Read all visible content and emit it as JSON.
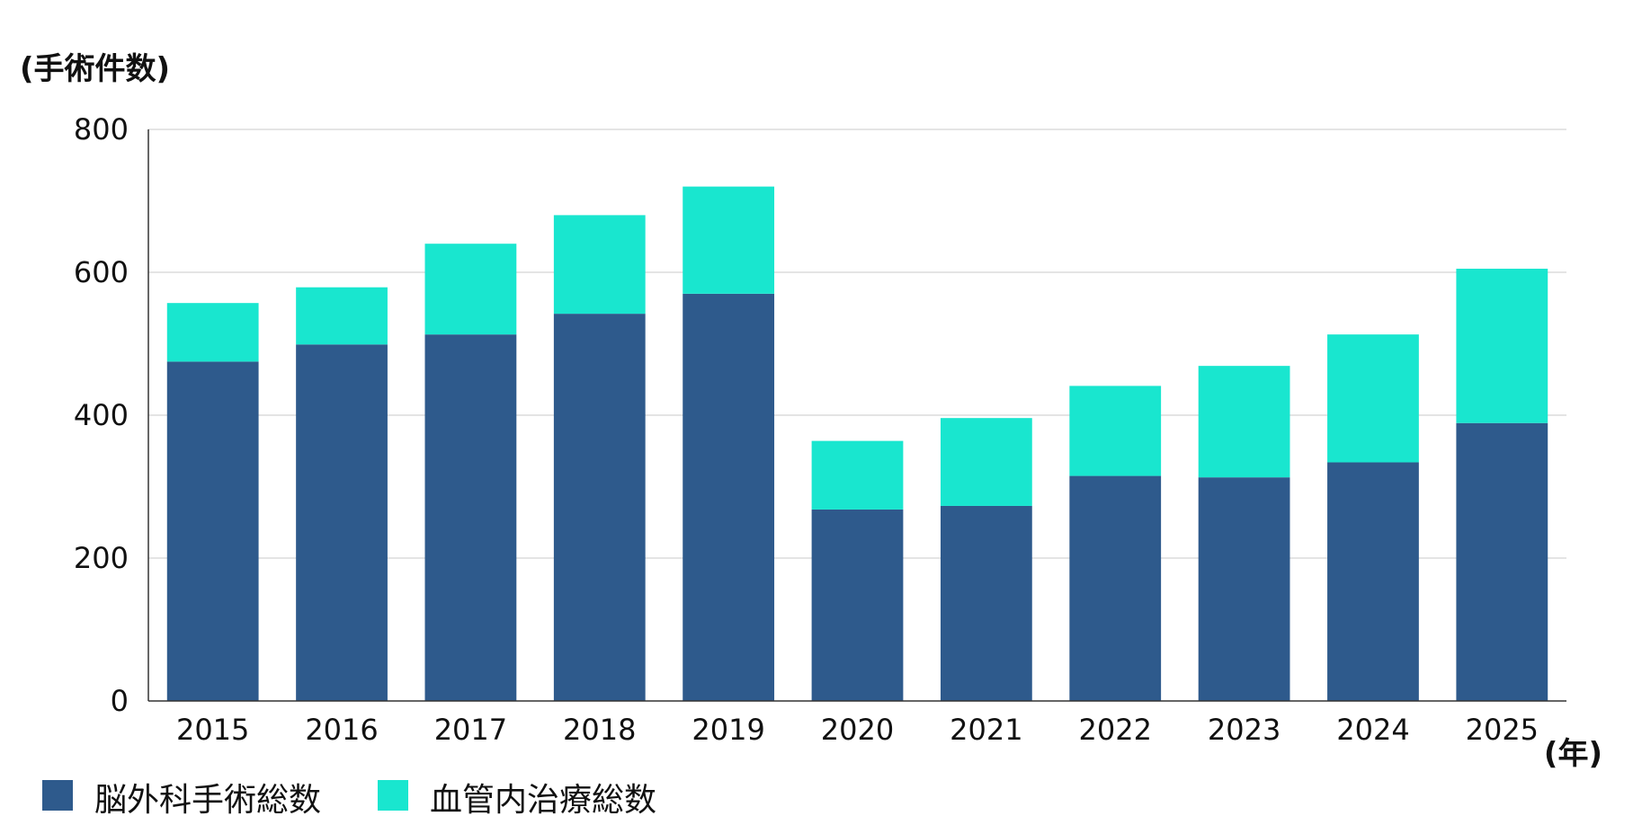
{
  "chart_data": {
    "type": "bar",
    "stacked": true,
    "ylabel": "(手術件数)",
    "xlabel": "(年)",
    "ylim": [
      0,
      800
    ],
    "yticks": [
      0,
      200,
      400,
      600,
      800
    ],
    "grid": true,
    "legend_position": "bottom-left",
    "categories": [
      "2015",
      "2016",
      "2017",
      "2018",
      "2019",
      "2020",
      "2021",
      "2022",
      "2023",
      "2024",
      "2025"
    ],
    "series": [
      {
        "name": "脳外科手術総数",
        "color": "#2e5a8c",
        "values": [
          475,
          499,
          513,
          542,
          570,
          268,
          273,
          315,
          313,
          334,
          389
        ]
      },
      {
        "name": "血管内治療総数",
        "color": "#19e6cf",
        "values": [
          82,
          80,
          127,
          138,
          150,
          96,
          123,
          126,
          156,
          179,
          216
        ]
      }
    ]
  }
}
